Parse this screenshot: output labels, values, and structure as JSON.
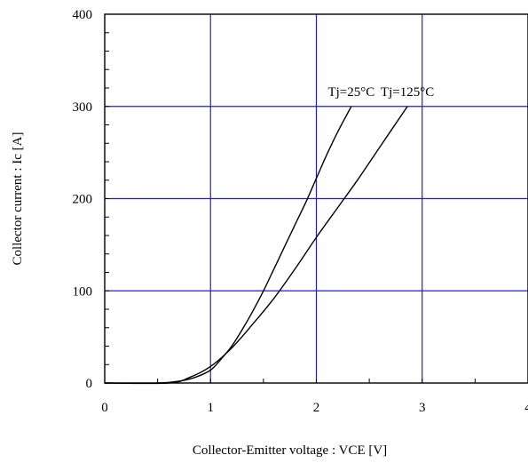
{
  "chart_data": {
    "type": "line",
    "title": "",
    "xlabel": "Collector-Emitter voltage : VCE [V]",
    "ylabel": "Collector current : Ic [A]",
    "xlim": [
      0,
      4
    ],
    "ylim": [
      0,
      400
    ],
    "x_ticks": [
      "0",
      "1",
      "2",
      "3",
      "4"
    ],
    "y_ticks": [
      "0",
      "100",
      "200",
      "300",
      "400"
    ],
    "grid": true,
    "grid_color": "#2020c0",
    "series": [
      {
        "name": "Tj=25°C",
        "x": [
          0.0,
          0.5,
          0.7,
          0.85,
          1.0,
          1.1,
          1.2,
          1.3,
          1.4,
          1.5,
          1.6,
          1.7,
          1.8,
          1.9,
          2.0,
          2.1,
          2.2,
          2.33
        ],
        "y": [
          0,
          0,
          2,
          6,
          14,
          26,
          40,
          58,
          78,
          100,
          124,
          148,
          172,
          196,
          222,
          248,
          272,
          300
        ]
      },
      {
        "name": "Tj=125°C",
        "x": [
          0.0,
          0.6,
          0.8,
          1.0,
          1.2,
          1.4,
          1.6,
          1.8,
          2.0,
          2.2,
          2.4,
          2.6,
          2.86
        ],
        "y": [
          0,
          0,
          6,
          18,
          38,
          64,
          92,
          124,
          158,
          190,
          222,
          256,
          300
        ]
      }
    ]
  }
}
